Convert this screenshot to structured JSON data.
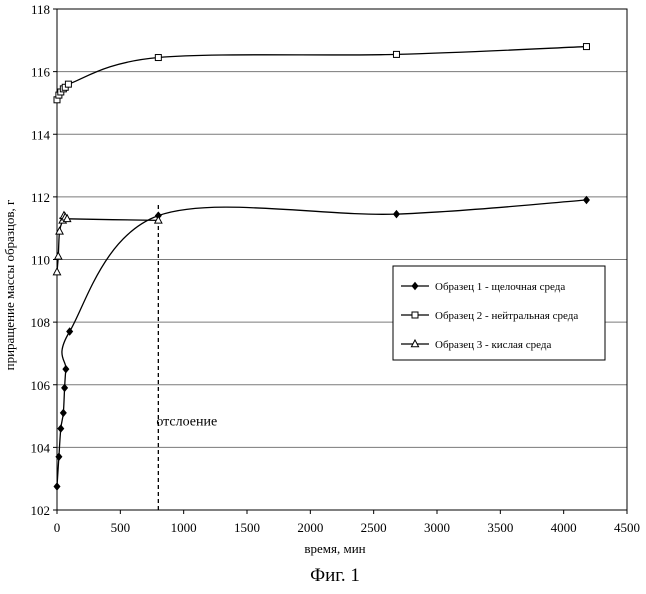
{
  "chart_data": {
    "type": "line",
    "xlabel": "время, мин",
    "ylabel": "приращение массы образцов, г",
    "xlim": [
      0,
      4500
    ],
    "ylim": [
      102,
      118
    ],
    "xticks": [
      0,
      500,
      1000,
      1500,
      2000,
      2500,
      3000,
      3500,
      4000,
      4500
    ],
    "yticks": [
      102,
      104,
      106,
      108,
      110,
      112,
      114,
      116,
      118
    ],
    "grid": "horizontal",
    "legend_position": "right",
    "series": [
      {
        "name": "Образец 1 - щелочная среда",
        "marker": "diamond-filled",
        "x": [
          0,
          15,
          30,
          50,
          60,
          70,
          100,
          800,
          2680,
          4180
        ],
        "y": [
          102.75,
          103.7,
          104.6,
          105.1,
          105.9,
          106.5,
          107.7,
          111.4,
          111.45,
          111.9
        ]
      },
      {
        "name": "Образец 2 - нейтральная среда",
        "marker": "square-open",
        "x": [
          0,
          15,
          30,
          50,
          65,
          90,
          800,
          2680,
          4180
        ],
        "y": [
          115.1,
          115.25,
          115.35,
          115.45,
          115.5,
          115.6,
          116.45,
          116.55,
          116.8
        ]
      },
      {
        "name": "Образец 3 - кислая среда",
        "marker": "triangle-open",
        "x": [
          0,
          10,
          20,
          45,
          55,
          65,
          80,
          800
        ],
        "y": [
          109.6,
          110.1,
          110.9,
          111.25,
          111.4,
          111.35,
          111.3,
          111.25
        ]
      }
    ],
    "annotations": [
      {
        "text": "отслоение",
        "x": 800,
        "y": 104.7,
        "line_from_y": 102,
        "line_to_y": 111.8
      }
    ]
  },
  "caption": "Фиг. 1"
}
